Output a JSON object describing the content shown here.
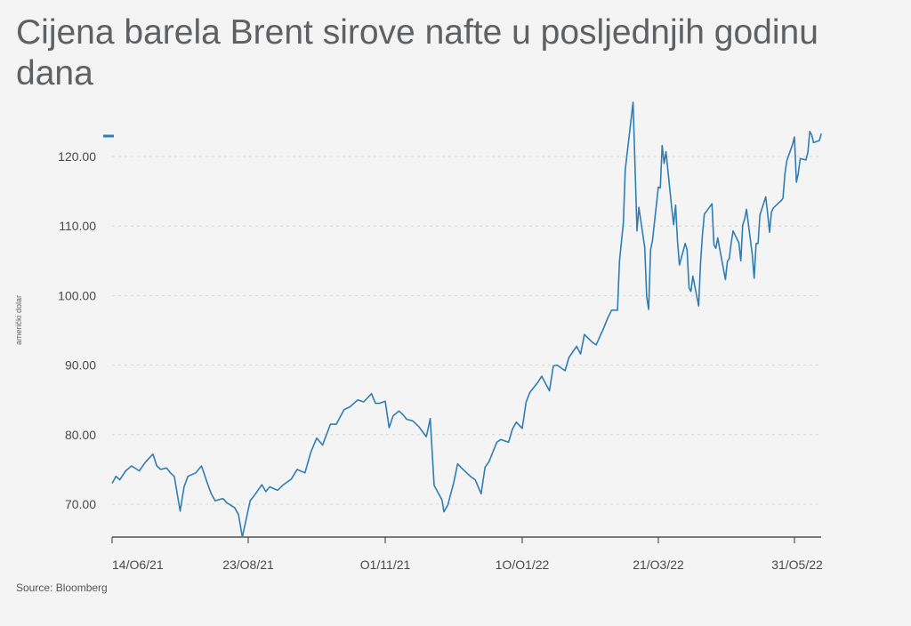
{
  "title": "Cijena barela Brent sirove nafte u posljednjih godinu dana",
  "source": "Source: Bloomberg",
  "colors": {
    "line": "#2f7db5",
    "grid": "#d6d6d6",
    "axis": "#333333",
    "background": "#f4f4f4"
  },
  "chart_data": {
    "type": "line",
    "title": "Cijena barela Brent sirove nafte u posljednjih godinu dana",
    "ylabel": "američki dolar",
    "xlabel": "",
    "ylim": [
      65,
      120
    ],
    "yticks": [
      70,
      80,
      90,
      100,
      110,
      120
    ],
    "ytick_labels": [
      "70.00",
      "80.00",
      "90.00",
      "100.00",
      "110.00",
      "120.00"
    ],
    "xticks": [
      "2021-06-14",
      "2021-08-23",
      "2021-11-01",
      "2022-01-10",
      "2022-03-21",
      "2022-05-31"
    ],
    "xtick_labels": [
      "14/O6/21",
      "23/O8/21",
      "O1/11/21",
      "1O/O1/22",
      "21/O3/22",
      "31/O5/22"
    ],
    "grid": true,
    "legend": "top-left",
    "series": [
      {
        "name": "",
        "points": [
          [
            "2021-06-14",
            73.0
          ],
          [
            "2021-06-16",
            74.0
          ],
          [
            "2021-06-18",
            73.5
          ],
          [
            "2021-06-21",
            74.8
          ],
          [
            "2021-06-24",
            75.5
          ],
          [
            "2021-06-28",
            74.8
          ],
          [
            "2021-07-01",
            76.0
          ],
          [
            "2021-07-05",
            77.2
          ],
          [
            "2021-07-07",
            75.5
          ],
          [
            "2021-07-09",
            75.0
          ],
          [
            "2021-07-12",
            75.2
          ],
          [
            "2021-07-14",
            74.5
          ],
          [
            "2021-07-16",
            74.0
          ],
          [
            "2021-07-19",
            69.0
          ],
          [
            "2021-07-21",
            72.5
          ],
          [
            "2021-07-23",
            74.0
          ],
          [
            "2021-07-27",
            74.5
          ],
          [
            "2021-07-30",
            75.5
          ],
          [
            "2021-08-02",
            73.0
          ],
          [
            "2021-08-04",
            71.5
          ],
          [
            "2021-08-06",
            70.5
          ],
          [
            "2021-08-10",
            70.8
          ],
          [
            "2021-08-12",
            70.2
          ],
          [
            "2021-08-16",
            69.5
          ],
          [
            "2021-08-18",
            68.5
          ],
          [
            "2021-08-20",
            65.2
          ],
          [
            "2021-08-24",
            70.5
          ],
          [
            "2021-08-26",
            71.2
          ],
          [
            "2021-08-30",
            72.8
          ],
          [
            "2021-09-01",
            71.8
          ],
          [
            "2021-09-03",
            72.5
          ],
          [
            "2021-09-07",
            72.0
          ],
          [
            "2021-09-10",
            72.8
          ],
          [
            "2021-09-14",
            73.6
          ],
          [
            "2021-09-17",
            75.0
          ],
          [
            "2021-09-21",
            74.5
          ],
          [
            "2021-09-24",
            77.5
          ],
          [
            "2021-09-27",
            79.5
          ],
          [
            "2021-09-30",
            78.5
          ],
          [
            "2021-10-04",
            81.5
          ],
          [
            "2021-10-07",
            81.5
          ],
          [
            "2021-10-11",
            83.6
          ],
          [
            "2021-10-14",
            84.0
          ],
          [
            "2021-10-18",
            85.0
          ],
          [
            "2021-10-21",
            84.7
          ],
          [
            "2021-10-25",
            85.9
          ],
          [
            "2021-10-27",
            84.5
          ],
          [
            "2021-10-29",
            84.5
          ],
          [
            "2021-11-01",
            84.8
          ],
          [
            "2021-11-03",
            81.0
          ],
          [
            "2021-11-05",
            82.7
          ],
          [
            "2021-11-08",
            83.4
          ],
          [
            "2021-11-10",
            82.9
          ],
          [
            "2021-11-12",
            82.2
          ],
          [
            "2021-11-15",
            82.0
          ],
          [
            "2021-11-18",
            81.2
          ],
          [
            "2021-11-22",
            79.7
          ],
          [
            "2021-11-24",
            82.3
          ],
          [
            "2021-11-26",
            72.7
          ],
          [
            "2021-11-30",
            70.6
          ],
          [
            "2021-12-01",
            68.9
          ],
          [
            "2021-12-03",
            69.9
          ],
          [
            "2021-12-06",
            73.1
          ],
          [
            "2021-12-08",
            75.8
          ],
          [
            "2021-12-10",
            75.2
          ],
          [
            "2021-12-13",
            74.4
          ],
          [
            "2021-12-15",
            73.9
          ],
          [
            "2021-12-17",
            73.5
          ],
          [
            "2021-12-20",
            71.5
          ],
          [
            "2021-12-22",
            75.3
          ],
          [
            "2021-12-24",
            76.1
          ],
          [
            "2021-12-28",
            78.9
          ],
          [
            "2021-12-30",
            79.3
          ],
          [
            "2022-01-03",
            78.9
          ],
          [
            "2022-01-05",
            80.8
          ],
          [
            "2022-01-07",
            81.8
          ],
          [
            "2022-01-10",
            80.9
          ],
          [
            "2022-01-12",
            84.7
          ],
          [
            "2022-01-14",
            86.1
          ],
          [
            "2022-01-18",
            87.5
          ],
          [
            "2022-01-20",
            88.4
          ],
          [
            "2022-01-24",
            86.3
          ],
          [
            "2022-01-26",
            89.9
          ],
          [
            "2022-01-28",
            90.0
          ],
          [
            "2022-02-01",
            89.2
          ],
          [
            "2022-02-03",
            91.1
          ],
          [
            "2022-02-07",
            92.7
          ],
          [
            "2022-02-09",
            91.6
          ],
          [
            "2022-02-11",
            94.4
          ],
          [
            "2022-02-15",
            93.3
          ],
          [
            "2022-02-17",
            92.9
          ],
          [
            "2022-02-21",
            95.4
          ],
          [
            "2022-02-23",
            96.8
          ],
          [
            "2022-02-25",
            97.9
          ],
          [
            "2022-02-28",
            97.9
          ],
          [
            "2022-03-01",
            104.9
          ],
          [
            "2022-03-03",
            110.5
          ],
          [
            "2022-03-04",
            118.1
          ],
          [
            "2022-03-08",
            127.9
          ],
          [
            "2022-03-10",
            109.3
          ],
          [
            "2022-03-11",
            112.7
          ],
          [
            "2022-03-14",
            106.9
          ],
          [
            "2022-03-15",
            99.9
          ],
          [
            "2022-03-16",
            98.0
          ],
          [
            "2022-03-17",
            106.6
          ],
          [
            "2022-03-18",
            107.9
          ],
          [
            "2022-03-21",
            115.6
          ],
          [
            "2022-03-22",
            115.5
          ],
          [
            "2022-03-23",
            121.6
          ],
          [
            "2022-03-24",
            119.0
          ],
          [
            "2022-03-25",
            120.7
          ],
          [
            "2022-03-28",
            112.5
          ],
          [
            "2022-03-29",
            110.2
          ],
          [
            "2022-03-30",
            113.0
          ],
          [
            "2022-03-31",
            107.9
          ],
          [
            "2022-04-01",
            104.4
          ],
          [
            "2022-04-04",
            107.5
          ],
          [
            "2022-04-05",
            106.6
          ],
          [
            "2022-04-06",
            101.1
          ],
          [
            "2022-04-07",
            100.6
          ],
          [
            "2022-04-08",
            102.8
          ],
          [
            "2022-04-11",
            98.5
          ],
          [
            "2022-04-12",
            104.6
          ],
          [
            "2022-04-13",
            108.8
          ],
          [
            "2022-04-14",
            111.7
          ],
          [
            "2022-04-18",
            113.2
          ],
          [
            "2022-04-19",
            107.3
          ],
          [
            "2022-04-20",
            106.8
          ],
          [
            "2022-04-21",
            108.3
          ],
          [
            "2022-04-22",
            106.7
          ],
          [
            "2022-04-25",
            102.3
          ],
          [
            "2022-04-26",
            104.9
          ],
          [
            "2022-04-27",
            105.3
          ],
          [
            "2022-04-28",
            107.6
          ],
          [
            "2022-04-29",
            109.3
          ],
          [
            "2022-05-02",
            107.6
          ],
          [
            "2022-05-03",
            105.0
          ],
          [
            "2022-05-04",
            110.1
          ],
          [
            "2022-05-05",
            111.0
          ],
          [
            "2022-05-06",
            112.4
          ],
          [
            "2022-05-09",
            105.9
          ],
          [
            "2022-05-10",
            102.5
          ],
          [
            "2022-05-11",
            107.5
          ],
          [
            "2022-05-12",
            107.5
          ],
          [
            "2022-05-13",
            111.6
          ],
          [
            "2022-05-16",
            114.2
          ],
          [
            "2022-05-17",
            111.9
          ],
          [
            "2022-05-18",
            109.1
          ],
          [
            "2022-05-19",
            112.0
          ],
          [
            "2022-05-20",
            112.6
          ],
          [
            "2022-05-23",
            113.4
          ],
          [
            "2022-05-24",
            113.6
          ],
          [
            "2022-05-25",
            114.0
          ],
          [
            "2022-05-26",
            117.4
          ],
          [
            "2022-05-27",
            119.4
          ],
          [
            "2022-05-30",
            121.7
          ],
          [
            "2022-05-31",
            122.8
          ],
          [
            "2022-06-01",
            116.3
          ],
          [
            "2022-06-02",
            117.6
          ],
          [
            "2022-06-03",
            119.7
          ],
          [
            "2022-06-06",
            119.5
          ],
          [
            "2022-06-07",
            120.6
          ],
          [
            "2022-06-08",
            123.6
          ],
          [
            "2022-06-09",
            123.1
          ],
          [
            "2022-06-10",
            122.0
          ],
          [
            "2022-06-13",
            122.3
          ],
          [
            "2022-06-14",
            123.3
          ]
        ]
      }
    ]
  }
}
